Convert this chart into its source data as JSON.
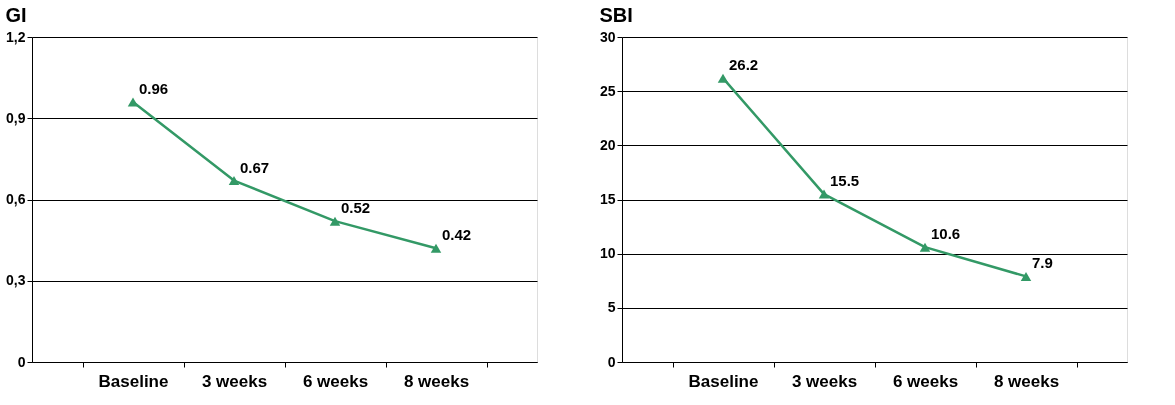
{
  "chart_data": [
    {
      "type": "line",
      "title": "GI",
      "categories": [
        "Baseline",
        "3 weeks",
        "6 weeks",
        "8 weeks"
      ],
      "series": [
        {
          "color": "#339966",
          "values": [
            0.96,
            0.67,
            0.52,
            0.42
          ]
        }
      ],
      "ylim": [
        0,
        1.2
      ],
      "yticks": [
        0,
        {
          "value": 0.3,
          "label": "0,3"
        },
        {
          "value": 0.6,
          "label": "0,6"
        },
        {
          "value": 0.9,
          "label": "0,9"
        },
        {
          "value": 1.2,
          "label": "1,2"
        }
      ],
      "grid": "y",
      "marker": "triangle",
      "data_labels": true
    },
    {
      "type": "line",
      "title": "SBI",
      "categories": [
        "Baseline",
        "3 weeks",
        "6 weeks",
        "8 weeks"
      ],
      "series": [
        {
          "color": "#339966",
          "values": [
            26.2,
            15.5,
            10.6,
            7.9
          ]
        }
      ],
      "ylim": [
        0,
        30
      ],
      "yticks": [
        0,
        5,
        10,
        15,
        20,
        25,
        30
      ],
      "grid": "y",
      "marker": "triangle",
      "data_labels": true
    }
  ]
}
